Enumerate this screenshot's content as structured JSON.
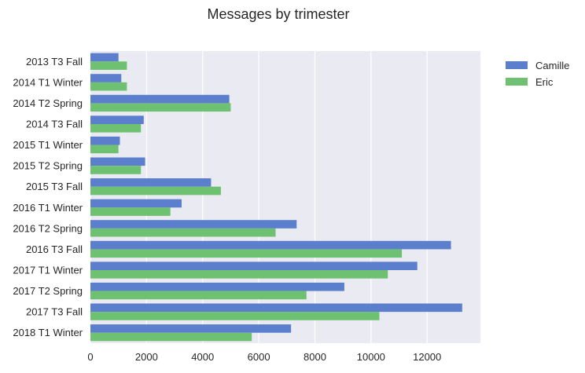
{
  "chart_data": {
    "type": "bar",
    "orientation": "horizontal",
    "title": "Messages by trimester",
    "xlabel": "",
    "ylabel": "",
    "xlim": [
      0,
      13900
    ],
    "xticks": [
      0,
      2000,
      4000,
      6000,
      8000,
      10000,
      12000
    ],
    "xtick_labels": [
      "0",
      "2000",
      "4000",
      "6000",
      "8000",
      "10000",
      "12000"
    ],
    "grid": true,
    "legend_position": "upper-right-outside",
    "categories": [
      "2013 T3 Fall",
      "2014 T1 Winter",
      "2014 T2 Spring",
      "2014 T3 Fall",
      "2015 T1 Winter",
      "2015 T2 Spring",
      "2015 T3 Fall",
      "2016 T1 Winter",
      "2016 T2 Spring",
      "2016 T3 Fall",
      "2017 T1 Winter",
      "2017 T2 Spring",
      "2017 T3 Fall",
      "2018 T1 Winter"
    ],
    "series": [
      {
        "name": "Camille",
        "color": "#5b7fcc",
        "values": [
          1000,
          1100,
          4950,
          1900,
          1050,
          1950,
          4300,
          3250,
          7350,
          12850,
          11650,
          9050,
          13250,
          7150
        ]
      },
      {
        "name": "Eric",
        "color": "#6dc170",
        "values": [
          1300,
          1300,
          5000,
          1800,
          1000,
          1800,
          4650,
          2850,
          6600,
          11100,
          10600,
          7700,
          10300,
          5750
        ]
      }
    ]
  }
}
